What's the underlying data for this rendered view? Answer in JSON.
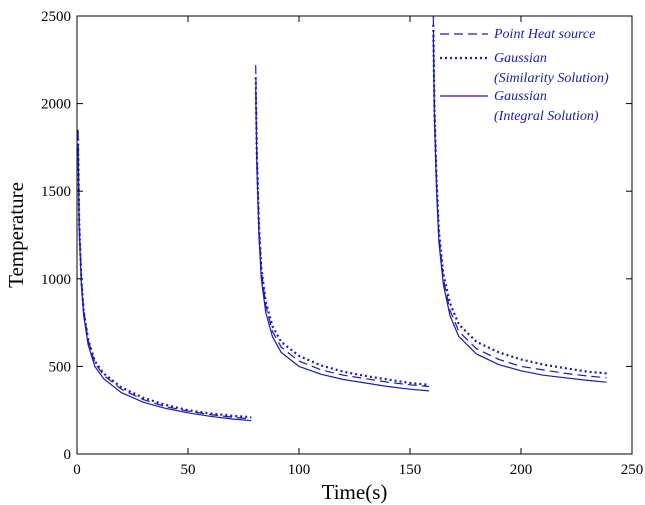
{
  "chart_data": {
    "type": "line",
    "title": "",
    "xlabel": "Time(s)",
    "ylabel": "Temperature",
    "xlim": [
      0,
      250
    ],
    "ylim": [
      0,
      2500
    ],
    "xticks": [
      "0",
      "50",
      "100",
      "150",
      "200",
      "250"
    ],
    "yticks": [
      "0",
      "500",
      "1000",
      "1500",
      "2000",
      "2500"
    ],
    "grid": false,
    "legend_position": "top-right",
    "color": "#1a1ab4",
    "series": [
      {
        "name": "Point Heat source",
        "style": "dashed",
        "segments": [
          {
            "x": [
              0.5,
              1,
              2,
              3,
              5,
              8,
              12,
              20,
              30,
              40,
              50,
              60,
              70,
              78.5
            ],
            "y": [
              1850,
              1350,
              1000,
              820,
              650,
              520,
              450,
              370,
              310,
              270,
              245,
              225,
              210,
              200
            ]
          },
          {
            "x": [
              80.5,
              81,
              82,
              83,
              85,
              88,
              92,
              100,
              110,
              120,
              130,
              140,
              150,
              158.5
            ],
            "y": [
              2220,
              1750,
              1300,
              1050,
              850,
              700,
              610,
              530,
              480,
              450,
              430,
              410,
              395,
              385
            ]
          },
          {
            "x": [
              160.5,
              161,
              162,
              163,
              165,
              168,
              172,
              180,
              190,
              200,
              210,
              220,
              230,
              238.5
            ],
            "y": [
              2500,
              2000,
              1550,
              1250,
              1000,
              820,
              700,
              600,
              540,
              500,
              480,
              460,
              445,
              435
            ]
          }
        ]
      },
      {
        "name": "Gaussian (Similarity Solution)",
        "style": "dotted",
        "segments": [
          {
            "x": [
              0.5,
              1,
              2,
              3,
              5,
              8,
              12,
              20,
              30,
              40,
              50,
              60,
              70,
              78.5
            ],
            "y": [
              1800,
              1320,
              990,
              815,
              655,
              530,
              460,
              380,
              320,
              280,
              250,
              232,
              218,
              210
            ]
          },
          {
            "x": [
              80.5,
              81,
              82,
              83,
              85,
              88,
              92,
              100,
              110,
              120,
              130,
              140,
              150,
              158.5
            ],
            "y": [
              2150,
              1720,
              1300,
              1060,
              870,
              730,
              640,
              560,
              505,
              470,
              445,
              425,
              405,
              395
            ]
          },
          {
            "x": [
              160.5,
              161,
              162,
              163,
              165,
              168,
              172,
              180,
              190,
              200,
              210,
              220,
              230,
              238.5
            ],
            "y": [
              2450,
              1980,
              1560,
              1270,
              1030,
              860,
              740,
              640,
              580,
              540,
              510,
              490,
              470,
              460
            ]
          }
        ]
      },
      {
        "name": "Gaussian (Integral Solution)",
        "style": "solid",
        "segments": [
          {
            "x": [
              0.5,
              1,
              2,
              3,
              5,
              8,
              12,
              20,
              30,
              40,
              50,
              60,
              70,
              78.5
            ],
            "y": [
              1750,
              1280,
              960,
              790,
              625,
              500,
              430,
              350,
              295,
              260,
              235,
              215,
              200,
              190
            ]
          },
          {
            "x": [
              80.5,
              81,
              82,
              83,
              85,
              88,
              92,
              100,
              110,
              120,
              130,
              140,
              150,
              158.5
            ],
            "y": [
              2080,
              1650,
              1240,
              1000,
              810,
              670,
              580,
              500,
              455,
              425,
              405,
              385,
              370,
              360
            ]
          },
          {
            "x": [
              160.5,
              161,
              162,
              163,
              165,
              168,
              172,
              180,
              190,
              200,
              210,
              220,
              230,
              238.5
            ],
            "y": [
              2380,
              1920,
              1500,
              1210,
              970,
              790,
              670,
              570,
              510,
              475,
              450,
              435,
              420,
              410
            ]
          }
        ]
      }
    ]
  },
  "legend": {
    "entries": [
      {
        "lines": [
          "Point Heat source"
        ],
        "style": "dashed"
      },
      {
        "lines": [
          "Gaussian",
          "(Similarity Solution)"
        ],
        "style": "dotted"
      },
      {
        "lines": [
          "Gaussian",
          "(Integral Solution)"
        ],
        "style": "solid"
      }
    ]
  }
}
